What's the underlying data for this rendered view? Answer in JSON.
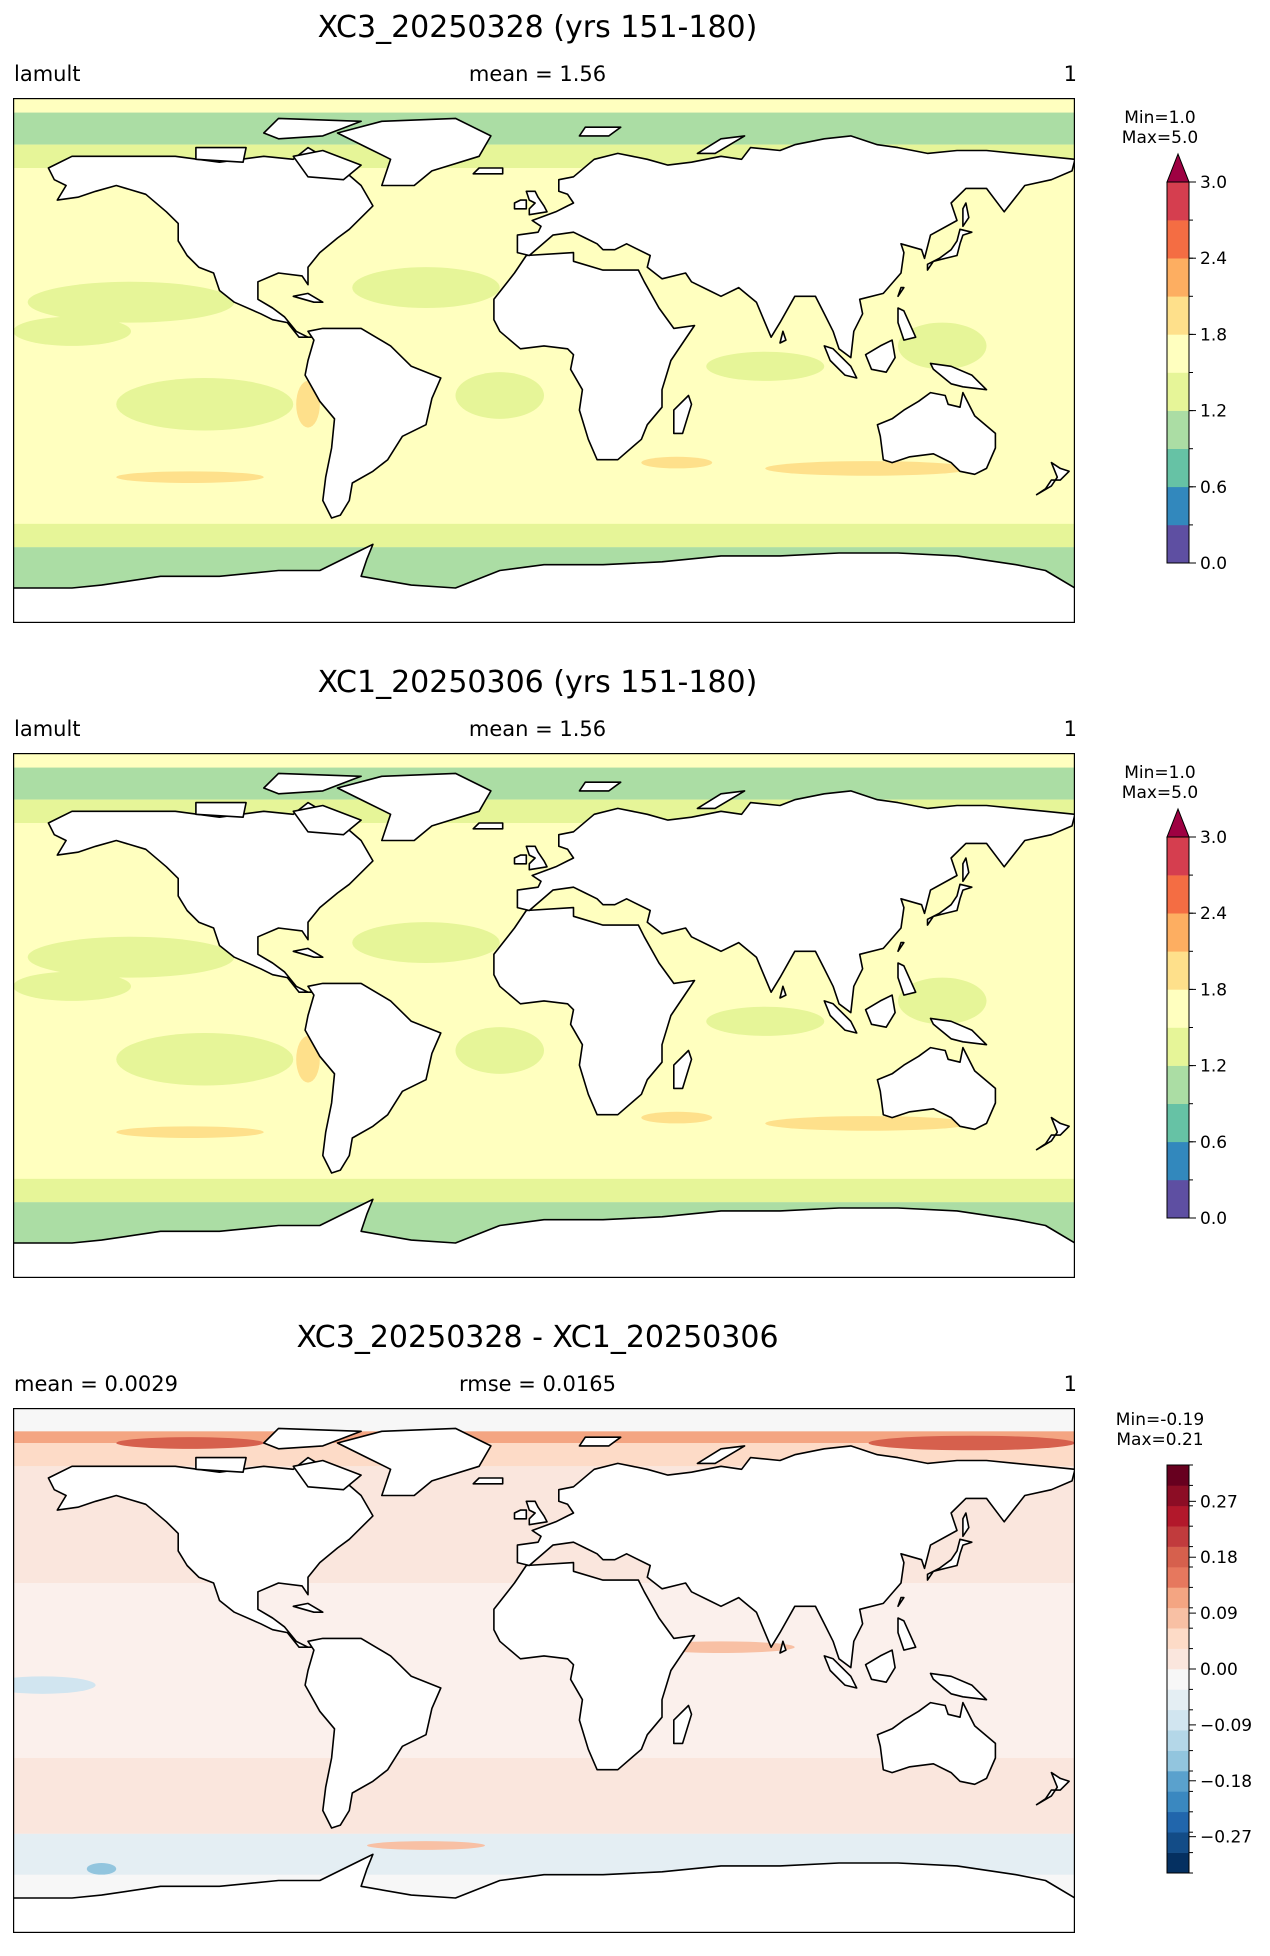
{
  "panels": [
    {
      "title": "XC3_20250328 (yrs 151-180)",
      "left_label": "lamult",
      "center_label": "mean = 1.56",
      "right_label": "1",
      "cb_min": "Min=1.0",
      "cb_max": "Max=5.0",
      "cb_ticks": [
        "0.0",
        "0.6",
        "1.2",
        "1.8",
        "2.4",
        "3.0"
      ],
      "cb_colors": [
        "#5e4fa2",
        "#3288bd",
        "#66c2a5",
        "#abdda4",
        "#e6f598",
        "#ffffbf",
        "#fee08b",
        "#fdae61",
        "#f46d43",
        "#d53e4f"
      ],
      "cb_extend_color": "#9e0142"
    },
    {
      "title": "XC1_20250306 (yrs 151-180)",
      "left_label": "lamult",
      "center_label": "mean = 1.56",
      "right_label": "1",
      "cb_min": "Min=1.0",
      "cb_max": "Max=5.0",
      "cb_ticks": [
        "0.0",
        "0.6",
        "1.2",
        "1.8",
        "2.4",
        "3.0"
      ],
      "cb_colors": [
        "#5e4fa2",
        "#3288bd",
        "#66c2a5",
        "#abdda4",
        "#e6f598",
        "#ffffbf",
        "#fee08b",
        "#fdae61",
        "#f46d43",
        "#d53e4f"
      ],
      "cb_extend_color": "#9e0142"
    },
    {
      "title": "XC3_20250328 - XC1_20250306",
      "left_label": "mean = 0.0029",
      "center_label": "rmse = 0.0165",
      "right_label": "1",
      "cb_min": "Min=-0.19",
      "cb_max": "Max=0.21",
      "cb_ticks": [
        "−0.27",
        "−0.18",
        "−0.09",
        "0.00",
        "0.09",
        "0.18",
        "0.27"
      ],
      "cb_colors": [
        "#053061",
        "#134c87",
        "#2166ac",
        "#3a88c0",
        "#5aa1cd",
        "#92c5de",
        "#b4d7e8",
        "#d1e5f0",
        "#e4eef3",
        "#f7f7f7",
        "#fae6dd",
        "#fddbc7",
        "#f8c0a4",
        "#f4a582",
        "#e6785e",
        "#d6604d",
        "#c13b3d",
        "#b2182b",
        "#8c0d25",
        "#67001f"
      ],
      "cb_extend_color": ""
    }
  ],
  "chart_data": [
    {
      "type": "heatmap",
      "title": "XC3_20250328 (yrs 151-180)",
      "variable": "lamult",
      "mean": 1.56,
      "units": "1",
      "min": 1.0,
      "max": 5.0,
      "colorbar": {
        "ticks": [
          0.0,
          0.6,
          1.2,
          1.8,
          2.4,
          3.0
        ],
        "levels": [
          0.0,
          0.3,
          0.6,
          0.9,
          1.2,
          1.5,
          1.8,
          2.1,
          2.4,
          2.7,
          3.0
        ],
        "extend": "max"
      }
    },
    {
      "type": "heatmap",
      "title": "XC1_20250306 (yrs 151-180)",
      "variable": "lamult",
      "mean": 1.56,
      "units": "1",
      "min": 1.0,
      "max": 5.0,
      "colorbar": {
        "ticks": [
          0.0,
          0.6,
          1.2,
          1.8,
          2.4,
          3.0
        ],
        "levels": [
          0.0,
          0.3,
          0.6,
          0.9,
          1.2,
          1.5,
          1.8,
          2.1,
          2.4,
          2.7,
          3.0
        ],
        "extend": "max"
      }
    },
    {
      "type": "heatmap",
      "title": "XC3_20250328 - XC1_20250306",
      "mean": 0.0029,
      "rmse": 0.0165,
      "units": "1",
      "min": -0.19,
      "max": 0.21,
      "colorbar": {
        "ticks": [
          -0.27,
          -0.18,
          -0.09,
          0.0,
          0.09,
          0.18,
          0.27
        ],
        "extend": "neither"
      }
    }
  ]
}
